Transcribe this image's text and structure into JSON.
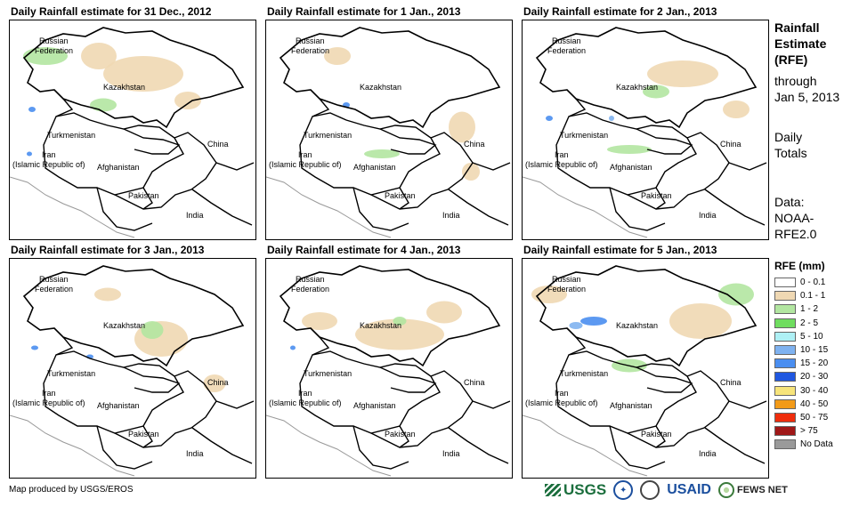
{
  "panels": [
    {
      "title": "Daily Rainfall estimate for 31 Dec., 2012"
    },
    {
      "title": "Daily Rainfall estimate for 1 Jan., 2013"
    },
    {
      "title": "Daily Rainfall estimate for 2 Jan., 2013"
    },
    {
      "title": "Daily Rainfall estimate for 3 Jan., 2013"
    },
    {
      "title": "Daily Rainfall estimate for 4 Jan., 2013"
    },
    {
      "title": "Daily Rainfall estimate for 5 Jan., 2013"
    }
  ],
  "map_labels": {
    "russia": [
      "Russian",
      "Federation"
    ],
    "kazakhstan": "Kazakhstan",
    "turkmenistan": "Turkmenistan",
    "iran": [
      "Iran",
      "(Islamic Republic of)"
    ],
    "afghanistan": "Afghanistan",
    "pakistan": "Pakistan",
    "china": "China",
    "india": "India"
  },
  "side": {
    "heading": [
      "Rainfall",
      "Estimate",
      "(RFE)"
    ],
    "through": [
      "through",
      "Jan 5, 2013"
    ],
    "totals": [
      "Daily",
      "Totals"
    ],
    "source": [
      "Data:",
      "NOAA-",
      "RFE2.0"
    ]
  },
  "legend": {
    "title": "RFE (mm)",
    "items": [
      {
        "label": "0 - 0.1",
        "color": "#ffffff"
      },
      {
        "label": "0.1 - 1",
        "color": "#efd8b3"
      },
      {
        "label": "1 - 2",
        "color": "#b2e6a1"
      },
      {
        "label": "2 - 5",
        "color": "#6fdd5f"
      },
      {
        "label": "5 - 10",
        "color": "#aef0f5"
      },
      {
        "label": "10 - 15",
        "color": "#7fb2f0"
      },
      {
        "label": "15 - 20",
        "color": "#4a8ef0"
      },
      {
        "label": "20 - 30",
        "color": "#1f57e0"
      },
      {
        "label": "30 - 40",
        "color": "#f7e47a"
      },
      {
        "label": "40 - 50",
        "color": "#f29a18"
      },
      {
        "label": "50 - 75",
        "color": "#ef2d0c"
      },
      {
        "label": "> 75",
        "color": "#a01818"
      },
      {
        "label": "No Data",
        "color": "#9a9a9a"
      }
    ]
  },
  "credit": "Map produced by USGS/EROS",
  "logos": {
    "usgs": "USGS",
    "noaa": "NOAA",
    "usaid": "USAID",
    "fews": "FEWS NET"
  }
}
